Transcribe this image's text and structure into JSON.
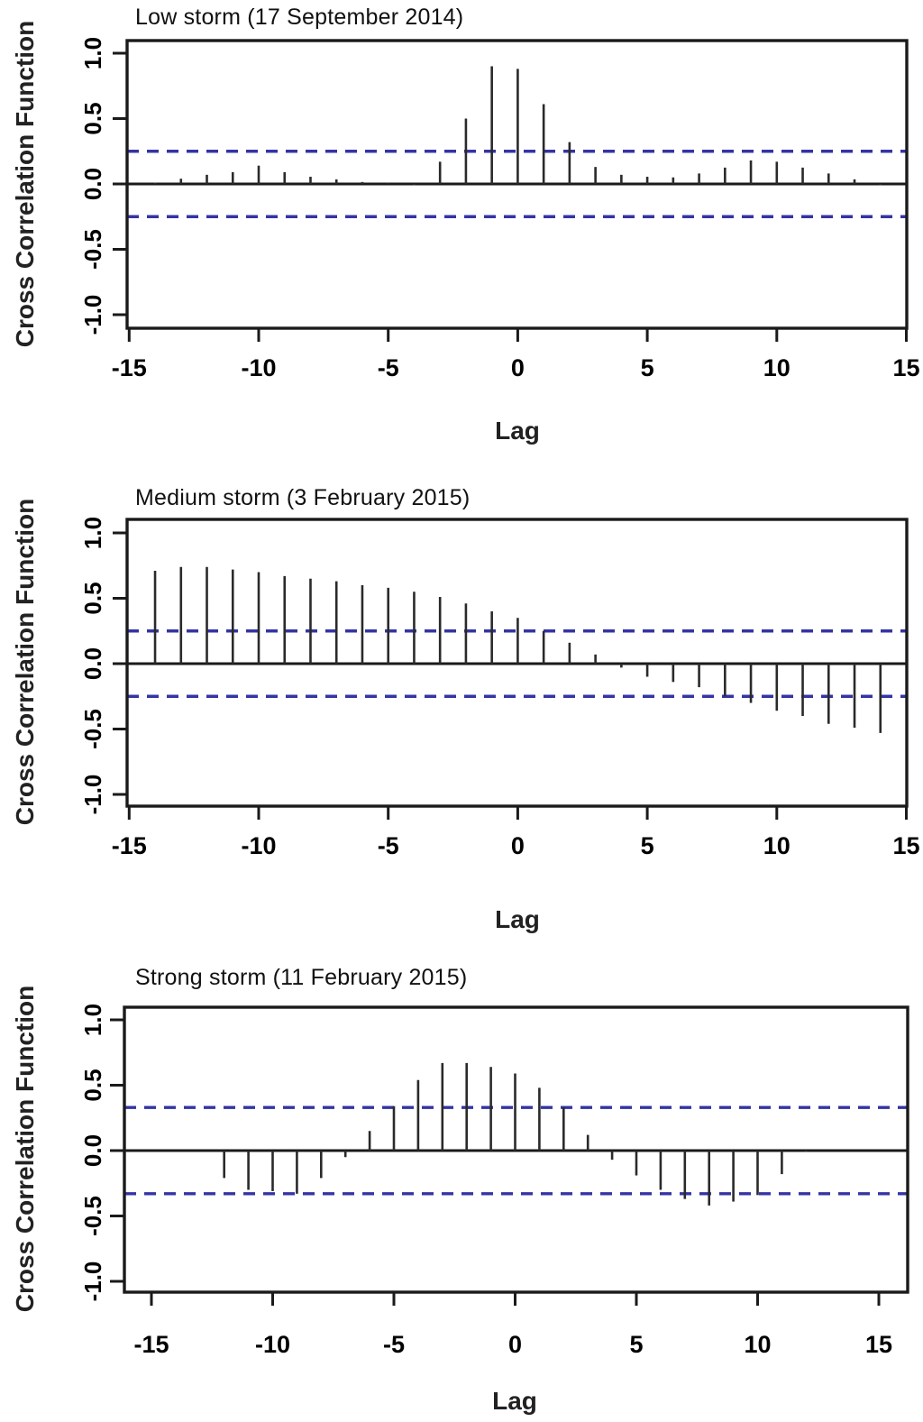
{
  "page": {
    "background": "#ffffff",
    "text_color": "#111111",
    "axis_color": "#1a1a1a",
    "spike_color": "#2a2a2a",
    "confidence_line_color": "#3434a4"
  },
  "chart_data": [
    {
      "type": "bar",
      "variant": "cross-correlation-spikes",
      "title": "Low storm (17 September 2014)",
      "xlabel": "Lag",
      "ylabel": "Cross Correlation Function",
      "ylim": [
        -1.1,
        1.1
      ],
      "xlim": [
        -15.5,
        15.5
      ],
      "grid": false,
      "legend": null,
      "xticks": [
        -15,
        -10,
        -5,
        0,
        5,
        10,
        15
      ],
      "xtick_labels": [
        "-15",
        "-10",
        "-5",
        "0",
        "5",
        "10",
        "15"
      ],
      "yticks": [
        1.0,
        0.5,
        0.0,
        -0.5,
        -1.0
      ],
      "ytick_labels": [
        "1.0",
        "0.5",
        "0.0",
        "-0.5",
        "-1.0"
      ],
      "confidence_level": 0.25,
      "lags": [
        -14,
        -13,
        -12,
        -11,
        -10,
        -9,
        -8,
        -7,
        -6,
        -5,
        -4,
        -3,
        -2,
        -1,
        0,
        1,
        2,
        3,
        4,
        5,
        6,
        7,
        8,
        9,
        10,
        11,
        12,
        13,
        14
      ],
      "values": [
        0.01,
        0.04,
        0.07,
        0.09,
        0.14,
        0.09,
        0.055,
        0.035,
        0.015,
        0.005,
        -0.01,
        0.17,
        0.5,
        0.9,
        0.88,
        0.61,
        0.32,
        0.13,
        0.07,
        0.055,
        0.05,
        0.08,
        0.125,
        0.18,
        0.17,
        0.125,
        0.08,
        0.035,
        -0.01
      ]
    },
    {
      "type": "bar",
      "variant": "cross-correlation-spikes",
      "title": "Medium storm (3 February 2015)",
      "xlabel": "Lag",
      "ylabel": "Cross Correlation Function",
      "ylim": [
        -1.1,
        1.1
      ],
      "xlim": [
        -15.5,
        15.5
      ],
      "grid": false,
      "legend": null,
      "xticks": [
        -15,
        -10,
        -5,
        0,
        5,
        10,
        15
      ],
      "xtick_labels": [
        "-15",
        "-10",
        "-5",
        "0",
        "5",
        "10",
        "15"
      ],
      "yticks": [
        1.0,
        0.5,
        0.0,
        -0.5,
        -1.0
      ],
      "ytick_labels": [
        "1.0",
        "0.5",
        "0.0",
        "-0.5",
        "-1.0"
      ],
      "confidence_level": 0.25,
      "lags": [
        -14,
        -13,
        -12,
        -11,
        -10,
        -9,
        -8,
        -7,
        -6,
        -5,
        -4,
        -3,
        -2,
        -1,
        0,
        1,
        2,
        3,
        4,
        5,
        6,
        7,
        8,
        9,
        10,
        11,
        12,
        13,
        14
      ],
      "values": [
        0.71,
        0.74,
        0.74,
        0.72,
        0.7,
        0.67,
        0.65,
        0.63,
        0.6,
        0.58,
        0.55,
        0.51,
        0.46,
        0.4,
        0.35,
        0.25,
        0.16,
        0.07,
        -0.03,
        -0.1,
        -0.14,
        -0.18,
        -0.25,
        -0.3,
        -0.36,
        -0.4,
        -0.46,
        -0.49,
        -0.53
      ]
    },
    {
      "type": "bar",
      "variant": "cross-correlation-spikes",
      "title": "Strong storm (11 February 2015)",
      "xlabel": "Lag",
      "ylabel": "Cross Correlation Function",
      "ylim": [
        -1.1,
        1.1
      ],
      "xlim": [
        -16.0,
        15.5
      ],
      "grid": false,
      "legend": null,
      "xticks": [
        -15,
        -10,
        -5,
        0,
        5,
        10,
        15
      ],
      "xtick_labels": [
        "-15",
        "-10",
        "-5",
        "0",
        "5",
        "10",
        "15"
      ],
      "yticks": [
        1.0,
        0.5,
        0.0,
        -0.5,
        -1.0
      ],
      "ytick_labels": [
        "1.0",
        "0.5",
        "0.0",
        "-0.5",
        "-1.0"
      ],
      "confidence_level": 0.33,
      "lags": [
        -12,
        -11,
        -10,
        -9,
        -8,
        -7,
        -6,
        -5,
        -4,
        -3,
        -2,
        -1,
        0,
        1,
        2,
        3,
        4,
        5,
        6,
        7,
        8,
        9,
        10,
        11,
        12
      ],
      "values": [
        -0.21,
        -0.3,
        -0.31,
        -0.33,
        -0.21,
        -0.05,
        0.15,
        0.34,
        0.54,
        0.67,
        0.67,
        0.64,
        0.59,
        0.48,
        0.33,
        0.12,
        -0.07,
        -0.19,
        -0.3,
        -0.37,
        -0.42,
        -0.39,
        -0.34,
        -0.18,
        -0.01
      ]
    }
  ]
}
